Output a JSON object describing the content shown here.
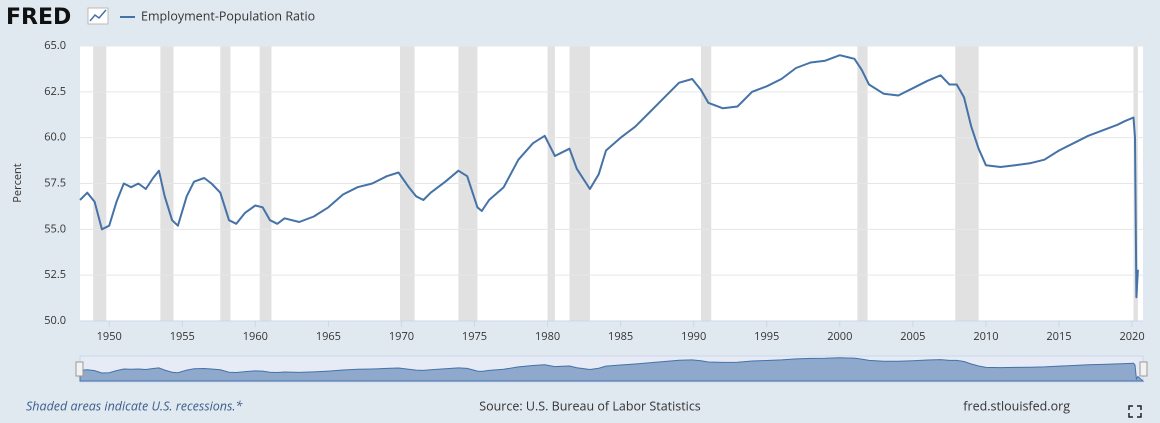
{
  "header": {
    "logo": "FRED"
  },
  "footer": {
    "note": "Shaded areas indicate U.S. recessions.*",
    "source": "Source: U.S. Bureau of Labor Statistics",
    "site": "fred.stlouisfed.org"
  },
  "chart_data": {
    "type": "line",
    "ylabel": "Percent",
    "xlim": [
      1948,
      2020.75
    ],
    "ylim": [
      50,
      65
    ],
    "xticks": [
      1950,
      1955,
      1960,
      1965,
      1970,
      1975,
      1980,
      1985,
      1990,
      1995,
      2000,
      2005,
      2010,
      2015,
      2020
    ],
    "yticks": [
      {
        "value": 50,
        "label": "50.0"
      },
      52.5,
      {
        "value": 55,
        "label": "55.0"
      },
      57.5,
      {
        "value": 60,
        "label": "60.0"
      },
      62.5,
      {
        "value": 65,
        "label": "65.0"
      }
    ],
    "grid": true,
    "recessions": [
      [
        1948.9,
        1949.8
      ],
      [
        1953.5,
        1954.4
      ],
      [
        1957.6,
        1958.3
      ],
      [
        1960.3,
        1961.1
      ],
      [
        1969.9,
        1970.9
      ],
      [
        1973.9,
        1975.2
      ],
      [
        1980.0,
        1980.5
      ],
      [
        1981.5,
        1982.9
      ],
      [
        1990.5,
        1991.2
      ],
      [
        2001.2,
        2001.9
      ],
      [
        2007.9,
        2009.5
      ],
      [
        2020.1,
        2020.4
      ]
    ],
    "recession_color": "#e1e1e1",
    "x": [
      1948.0,
      1948.5,
      1949.0,
      1949.5,
      1950.0,
      1950.5,
      1951.0,
      1951.5,
      1952.0,
      1952.5,
      1953.0,
      1953.4,
      1953.8,
      1954.3,
      1954.7,
      1955.3,
      1955.8,
      1956.5,
      1957.0,
      1957.6,
      1958.2,
      1958.7,
      1959.3,
      1960.0,
      1960.5,
      1961.0,
      1961.5,
      1962.0,
      1963.0,
      1964.0,
      1965.0,
      1966.0,
      1967.0,
      1968.0,
      1969.0,
      1969.8,
      1970.5,
      1971.0,
      1971.5,
      1972.0,
      1973.0,
      1973.9,
      1974.5,
      1975.2,
      1975.5,
      1976.0,
      1977.0,
      1978.0,
      1979.0,
      1979.8,
      1980.5,
      1981.0,
      1981.5,
      1982.0,
      1982.9,
      1983.5,
      1984.0,
      1985.0,
      1986.0,
      1987.0,
      1988.0,
      1989.0,
      1989.9,
      1990.5,
      1991.0,
      1992.0,
      1993.0,
      1994.0,
      1995.0,
      1996.0,
      1997.0,
      1998.0,
      1999.0,
      2000.0,
      2000.5,
      2001.0,
      2001.5,
      2002.0,
      2003.0,
      2004.0,
      2005.0,
      2006.0,
      2006.9,
      2007.5,
      2008.0,
      2008.5,
      2009.0,
      2009.5,
      2010.0,
      2011.0,
      2012.0,
      2013.0,
      2014.0,
      2015.0,
      2016.0,
      2017.0,
      2018.0,
      2019.0,
      2019.5,
      2020.1,
      2020.2,
      2020.3,
      2020.4
    ],
    "series": [
      {
        "name": "Employment-Population Ratio",
        "color": "#4572a7",
        "values": [
          56.6,
          57.0,
          56.5,
          55.0,
          55.2,
          56.5,
          57.5,
          57.3,
          57.5,
          57.2,
          57.8,
          58.2,
          56.8,
          55.5,
          55.2,
          56.8,
          57.6,
          57.8,
          57.5,
          57.0,
          55.5,
          55.3,
          55.9,
          56.3,
          56.2,
          55.5,
          55.3,
          55.6,
          55.4,
          55.7,
          56.2,
          56.9,
          57.3,
          57.5,
          57.9,
          58.1,
          57.3,
          56.8,
          56.6,
          57.0,
          57.6,
          58.2,
          57.9,
          56.2,
          56.0,
          56.6,
          57.3,
          58.8,
          59.7,
          60.1,
          59.0,
          59.2,
          59.4,
          58.3,
          57.2,
          58.0,
          59.3,
          60.0,
          60.6,
          61.4,
          62.2,
          63.0,
          63.2,
          62.6,
          61.9,
          61.6,
          61.7,
          62.5,
          62.8,
          63.2,
          63.8,
          64.1,
          64.2,
          64.5,
          64.4,
          64.3,
          63.7,
          62.9,
          62.4,
          62.3,
          62.7,
          63.1,
          63.4,
          62.9,
          62.9,
          62.2,
          60.6,
          59.4,
          58.5,
          58.4,
          58.5,
          58.6,
          58.8,
          59.3,
          59.7,
          60.1,
          60.4,
          60.7,
          60.9,
          61.1,
          60.0,
          51.3,
          52.8
        ]
      }
    ]
  }
}
